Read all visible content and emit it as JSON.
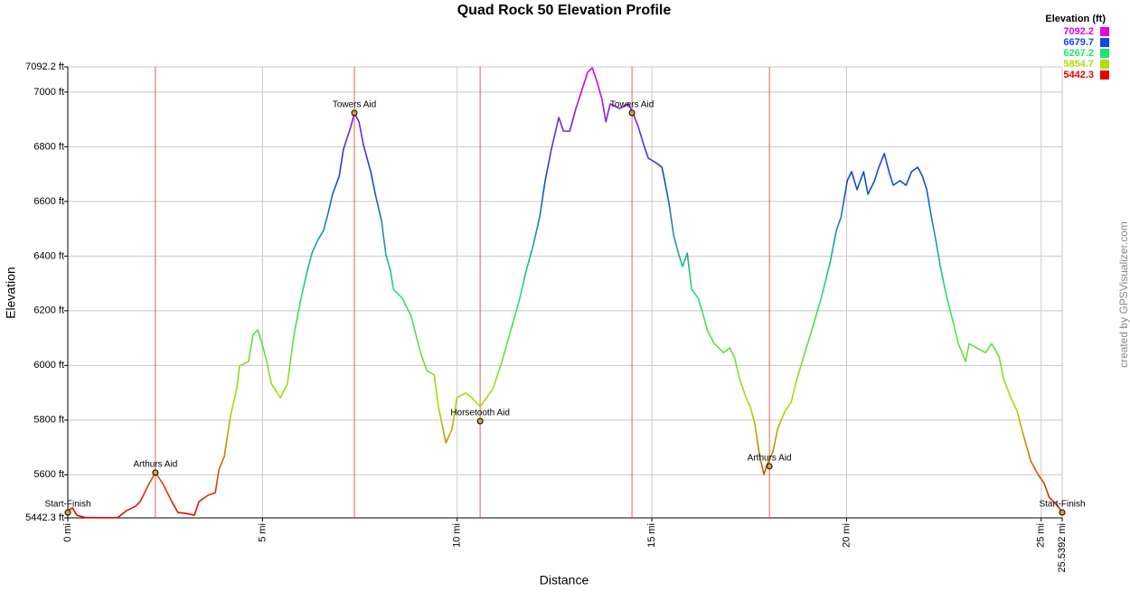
{
  "chart_data": {
    "type": "line",
    "title": "Quad Rock 50 Elevation Profile",
    "xlabel": "Distance",
    "ylabel": "Elevation",
    "credit": "created by GPSVisualizer.com",
    "xlim": [
      0,
      25.5392
    ],
    "ylim": [
      5442.3,
      7092.2
    ],
    "xticks": [
      {
        "value": 0,
        "label": "0 mi"
      },
      {
        "value": 5,
        "label": "5 mi"
      },
      {
        "value": 10,
        "label": "10 mi"
      },
      {
        "value": 15,
        "label": "15 mi"
      },
      {
        "value": 20,
        "label": "20 mi"
      },
      {
        "value": 25,
        "label": "25 mi"
      },
      {
        "value": 25.5392,
        "label": "25.5392 mi"
      }
    ],
    "yticks": [
      {
        "value": 5442.3,
        "label": "5442.3 ft"
      },
      {
        "value": 5600,
        "label": "5600 ft"
      },
      {
        "value": 5800,
        "label": "5800 ft"
      },
      {
        "value": 6000,
        "label": "6000 ft"
      },
      {
        "value": 6200,
        "label": "6200 ft"
      },
      {
        "value": 6400,
        "label": "6400 ft"
      },
      {
        "value": 6600,
        "label": "6600 ft"
      },
      {
        "value": 6800,
        "label": "6800 ft"
      },
      {
        "value": 7000,
        "label": "7000 ft"
      },
      {
        "value": 7092.2,
        "label": "7092.2 ft"
      }
    ],
    "grid": true,
    "legend": {
      "title": "Elevation (ft)",
      "position": "top-right",
      "values": [
        7092.2,
        6679.7,
        6267.2,
        5854.7,
        5442.3
      ],
      "colors": [
        "#e000e0",
        "#1048e0",
        "#20e070",
        "#a8e000",
        "#e80000"
      ]
    },
    "waypoints": [
      {
        "label": "Start-Finish",
        "x": 0,
        "y": 5462
      },
      {
        "label": "Arthurs Aid",
        "x": 2.25,
        "y": 5608
      },
      {
        "label": "Towers Aid",
        "x": 7.36,
        "y": 6924
      },
      {
        "label": "Horsetooth Aid",
        "x": 10.59,
        "y": 5796
      },
      {
        "label": "Towers Aid",
        "x": 14.49,
        "y": 6924
      },
      {
        "label": "Arthurs Aid",
        "x": 18.02,
        "y": 5631
      },
      {
        "label": "Start-Finish",
        "x": 25.54,
        "y": 5462
      }
    ],
    "aid_line_color": "#e06060",
    "x": [
      0,
      0.12,
      0.23,
      0.46,
      0.81,
      1.28,
      1.51,
      1.74,
      1.86,
      2.09,
      2.25,
      2.44,
      2.67,
      2.83,
      3.02,
      3.25,
      3.37,
      3.6,
      3.79,
      3.88,
      4.02,
      4.18,
      4.34,
      4.41,
      4.64,
      4.76,
      4.88,
      4.99,
      5.11,
      5.23,
      5.46,
      5.64,
      5.81,
      5.99,
      6.15,
      6.27,
      6.43,
      6.57,
      6.69,
      6.8,
      6.97,
      7.08,
      7.27,
      7.36,
      7.48,
      7.59,
      7.78,
      7.9,
      8.06,
      8.17,
      8.29,
      8.36,
      8.59,
      8.82,
      8.94,
      9.06,
      9.22,
      9.41,
      9.52,
      9.71,
      9.87,
      9.99,
      10.22,
      10.38,
      10.59,
      10.92,
      11.15,
      11.38,
      11.61,
      11.77,
      11.96,
      12.12,
      12.26,
      12.42,
      12.61,
      12.73,
      12.89,
      13.05,
      13.24,
      13.35,
      13.47,
      13.59,
      13.72,
      13.82,
      13.93,
      14.17,
      14.4,
      14.51,
      14.65,
      14.79,
      14.91,
      15.1,
      15.26,
      15.33,
      15.44,
      15.56,
      15.68,
      15.79,
      15.91,
      16.02,
      16.19,
      16.33,
      16.42,
      16.6,
      16.84,
      17,
      17.12,
      17.26,
      17.42,
      17.53,
      17.65,
      17.77,
      17.88,
      17.95,
      18.11,
      18.23,
      18.42,
      18.58,
      18.69,
      18.93,
      19.11,
      19.35,
      19.58,
      19.74,
      19.86,
      20.02,
      20.13,
      20.27,
      20.44,
      20.55,
      20.72,
      20.83,
      20.97,
      21.09,
      21.2,
      21.37,
      21.53,
      21.67,
      21.83,
      21.95,
      22.06,
      22.18,
      22.29,
      22.41,
      22.53,
      22.64,
      22.76,
      22.87,
      23.06,
      23.15,
      23.34,
      23.57,
      23.73,
      23.92,
      24.04,
      24.22,
      24.38,
      24.5,
      24.73,
      24.92,
      25.08,
      25.2,
      25.31,
      25.43,
      25.54
    ],
    "values": [
      5469,
      5479,
      5452,
      5443,
      5443,
      5443,
      5469,
      5485,
      5502,
      5568,
      5608,
      5568,
      5502,
      5462,
      5459,
      5452,
      5502,
      5525,
      5535,
      5618,
      5667,
      5816,
      5915,
      5998,
      6014,
      6113,
      6130,
      6080,
      6014,
      5932,
      5882,
      5932,
      6113,
      6246,
      6345,
      6411,
      6461,
      6494,
      6560,
      6626,
      6692,
      6791,
      6874,
      6924,
      6891,
      6808,
      6709,
      6626,
      6527,
      6405,
      6345,
      6279,
      6246,
      6180,
      6113,
      6047,
      5981,
      5965,
      5849,
      5717,
      5767,
      5882,
      5899,
      5882,
      5849,
      5915,
      6014,
      6130,
      6246,
      6345,
      6444,
      6543,
      6676,
      6791,
      6907,
      6857,
      6857,
      6940,
      7023,
      7072,
      7089,
      7039,
      6973,
      6891,
      6957,
      6940,
      6957,
      6924,
      6874,
      6808,
      6758,
      6742,
      6725,
      6676,
      6593,
      6477,
      6411,
      6362,
      6411,
      6279,
      6246,
      6180,
      6130,
      6080,
      6047,
      6064,
      6031,
      5948,
      5882,
      5849,
      5783,
      5667,
      5601,
      5634,
      5684,
      5767,
      5833,
      5866,
      5932,
      6047,
      6130,
      6246,
      6378,
      6494,
      6543,
      6676,
      6709,
      6643,
      6709,
      6626,
      6676,
      6725,
      6775,
      6709,
      6659,
      6676,
      6659,
      6709,
      6725,
      6692,
      6643,
      6543,
      6461,
      6362,
      6279,
      6213,
      6147,
      6080,
      6014,
      6080,
      6064,
      6047,
      6080,
      6031,
      5948,
      5882,
      5833,
      5767,
      5651,
      5601,
      5568,
      5519,
      5502,
      5485,
      5462
    ]
  }
}
